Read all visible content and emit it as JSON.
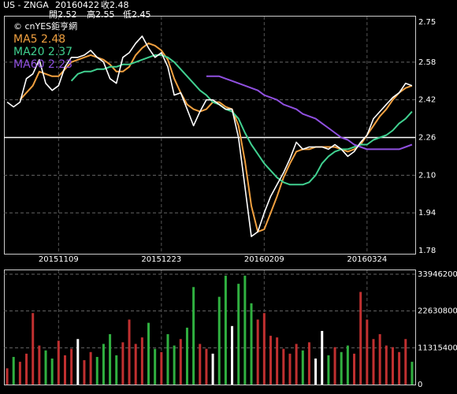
{
  "chart_data": {
    "type": "stock",
    "title": "US - ZNGA",
    "date": "20160422",
    "close_label": "收2.48",
    "open_label": "開2.52",
    "high_label": "高2.55",
    "low_label": "低2.45",
    "source": "© cnYES鉅亨網",
    "categories": [
      null,
      null,
      null,
      null,
      null,
      null,
      null,
      null,
      "20151109",
      null,
      null,
      null,
      null,
      null,
      null,
      null,
      null,
      null,
      null,
      null,
      null,
      null,
      null,
      null,
      "20151223",
      null,
      null,
      null,
      null,
      null,
      null,
      null,
      null,
      null,
      null,
      null,
      null,
      null,
      null,
      null,
      "20160209",
      null,
      null,
      null,
      null,
      null,
      null,
      null,
      null,
      null,
      null,
      null,
      null,
      null,
      null,
      null,
      "20160324",
      null,
      null,
      null,
      null,
      null,
      null,
      null
    ],
    "price": {
      "color": "#ffffff",
      "values": [
        2.41,
        2.39,
        2.41,
        2.51,
        2.53,
        2.59,
        2.49,
        2.46,
        2.48,
        2.56,
        2.6,
        2.6,
        2.61,
        2.63,
        2.6,
        2.58,
        2.51,
        2.49,
        2.6,
        2.62,
        2.66,
        2.69,
        2.64,
        2.6,
        2.62,
        2.56,
        2.44,
        2.45,
        2.38,
        2.31,
        2.37,
        2.42,
        2.42,
        2.4,
        2.38,
        2.38,
        2.26,
        2.05,
        1.84,
        1.86,
        1.94,
        2.01,
        2.06,
        2.11,
        2.17,
        2.24,
        2.21,
        2.22,
        2.22,
        2.22,
        2.21,
        2.23,
        2.21,
        2.18,
        2.2,
        2.24,
        2.27,
        2.34,
        2.37,
        2.4,
        2.43,
        2.45,
        2.49,
        2.48
      ]
    },
    "series": [
      {
        "name": "MA5 2.48",
        "color": "#f0a040",
        "values": [
          null,
          null,
          2.42,
          2.45,
          2.48,
          2.54,
          2.53,
          2.52,
          2.52,
          2.55,
          2.58,
          2.59,
          2.6,
          2.61,
          2.6,
          2.59,
          2.57,
          2.54,
          2.54,
          2.56,
          2.61,
          2.64,
          2.66,
          2.65,
          2.63,
          2.59,
          2.51,
          2.45,
          2.4,
          2.38,
          2.37,
          2.38,
          2.41,
          2.41,
          2.39,
          2.38,
          2.31,
          2.16,
          1.97,
          1.86,
          1.87,
          1.94,
          2.01,
          2.09,
          2.15,
          2.2,
          2.21,
          2.21,
          2.22,
          2.22,
          2.22,
          2.22,
          2.21,
          2.2,
          2.21,
          2.23,
          2.27,
          2.31,
          2.35,
          2.38,
          2.42,
          2.45,
          2.47,
          2.48
        ]
      },
      {
        "name": "MA20 2.37",
        "color": "#40d090",
        "values": [
          null,
          null,
          null,
          null,
          null,
          null,
          null,
          null,
          null,
          null,
          2.5,
          2.53,
          2.54,
          2.54,
          2.55,
          2.55,
          2.56,
          2.56,
          2.57,
          2.57,
          2.58,
          2.59,
          2.6,
          2.61,
          2.61,
          2.6,
          2.58,
          2.55,
          2.52,
          2.49,
          2.46,
          2.44,
          2.41,
          2.4,
          2.38,
          2.37,
          2.34,
          2.28,
          2.23,
          2.19,
          2.15,
          2.12,
          2.09,
          2.07,
          2.06,
          2.06,
          2.06,
          2.07,
          2.1,
          2.15,
          2.18,
          2.2,
          2.21,
          2.21,
          2.22,
          2.23,
          2.23,
          2.25,
          2.26,
          2.27,
          2.29,
          2.32,
          2.34,
          2.37
        ]
      },
      {
        "name": "MA60 2.23",
        "color": "#9050e0",
        "values": [
          null,
          null,
          null,
          null,
          null,
          null,
          null,
          null,
          null,
          null,
          null,
          null,
          null,
          null,
          null,
          null,
          null,
          null,
          null,
          null,
          null,
          null,
          null,
          null,
          null,
          null,
          null,
          null,
          null,
          null,
          null,
          2.52,
          2.52,
          2.52,
          2.51,
          2.5,
          2.49,
          2.48,
          2.47,
          2.46,
          2.44,
          2.43,
          2.42,
          2.4,
          2.39,
          2.38,
          2.36,
          2.35,
          2.34,
          2.32,
          2.3,
          2.28,
          2.26,
          2.25,
          2.23,
          2.22,
          2.21,
          2.21,
          2.21,
          2.21,
          2.21,
          2.21,
          2.22,
          2.23
        ]
      }
    ],
    "ylim": [
      1.78,
      2.75
    ],
    "yticks": [
      2.75,
      2.58,
      2.42,
      2.26,
      {
        "value": 2.1,
        "label": "2.10"
      },
      1.94,
      1.78
    ],
    "reference_line": 2.26,
    "grid": true,
    "volume": {
      "ylim": [
        0,
        33946200
      ],
      "yticks": [
        33946200,
        22630800,
        11315400,
        0
      ],
      "up_color": "#c03030",
      "down_color": "#30b040",
      "flat_color": "#ffffff",
      "values": [
        5000000,
        8500000,
        7000000,
        9500000,
        22000000,
        12000000,
        10500000,
        8000000,
        13500000,
        9000000,
        11000000,
        14000000,
        7500000,
        10000000,
        8500000,
        12500000,
        15500000,
        9000000,
        13000000,
        20000000,
        12500000,
        14500000,
        19000000,
        11000000,
        10000000,
        15500000,
        12000000,
        14000000,
        17500000,
        30000000,
        12500000,
        11000000,
        9500000,
        27000000,
        33500000,
        18000000,
        31000000,
        33500000,
        25000000,
        20000000,
        22000000,
        15000000,
        14500000,
        11000000,
        9500000,
        12500000,
        10500000,
        13000000,
        8000000,
        16500000,
        9000000,
        11500000,
        10000000,
        12000000,
        9500000,
        28500000,
        20000000,
        14000000,
        15500000,
        12000000,
        11500000,
        10000000,
        14000000,
        7000000
      ],
      "directions": [
        "up",
        "down",
        "up",
        "up",
        "up",
        "up",
        "down",
        "down",
        "up",
        "up",
        "up",
        "flat",
        "up",
        "up",
        "down",
        "down",
        "down",
        "down",
        "up",
        "up",
        "up",
        "up",
        "down",
        "down",
        "up",
        "down",
        "down",
        "up",
        "down",
        "down",
        "up",
        "up",
        "flat",
        "down",
        "down",
        "flat",
        "down",
        "down",
        "down",
        "up",
        "up",
        "up",
        "up",
        "up",
        "up",
        "up",
        "down",
        "up",
        "flat",
        "flat",
        "down",
        "up",
        "down",
        "down",
        "up",
        "up",
        "up",
        "up",
        "up",
        "up",
        "up",
        "up",
        "up",
        "down"
      ]
    }
  }
}
